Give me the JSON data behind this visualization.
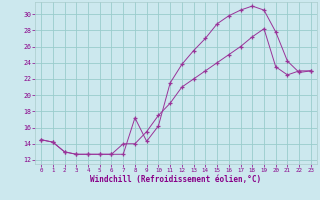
{
  "xlabel": "Windchill (Refroidissement éolien,°C)",
  "bg_color": "#cce8ee",
  "line_color": "#993399",
  "grid_color": "#99cccc",
  "xlim": [
    -0.5,
    23.5
  ],
  "ylim": [
    11.5,
    31.5
  ],
  "yticks": [
    12,
    14,
    16,
    18,
    20,
    22,
    24,
    26,
    28,
    30
  ],
  "xticks": [
    0,
    1,
    2,
    3,
    4,
    5,
    6,
    7,
    8,
    9,
    10,
    11,
    12,
    13,
    14,
    15,
    16,
    17,
    18,
    19,
    20,
    21,
    22,
    23
  ],
  "line1_x": [
    0,
    1,
    2,
    3,
    4,
    5,
    6,
    7,
    8,
    9,
    10,
    11,
    12,
    13,
    14,
    15,
    16,
    17,
    18,
    19,
    20,
    21,
    22,
    23
  ],
  "line1_y": [
    14.5,
    14.2,
    13.0,
    12.7,
    12.7,
    12.7,
    12.7,
    12.7,
    17.2,
    14.3,
    16.2,
    21.5,
    23.8,
    25.5,
    27.0,
    28.8,
    29.8,
    30.5,
    31.0,
    30.5,
    27.8,
    24.2,
    22.8,
    23.0
  ],
  "line2_x": [
    0,
    1,
    2,
    3,
    4,
    5,
    6,
    7,
    8,
    9,
    10,
    11,
    12,
    13,
    14,
    15,
    16,
    17,
    18,
    19,
    20,
    21,
    22,
    23
  ],
  "line2_y": [
    14.5,
    14.2,
    13.0,
    12.7,
    12.7,
    12.7,
    12.7,
    14.0,
    14.0,
    15.5,
    17.5,
    19.0,
    21.0,
    22.0,
    23.0,
    24.0,
    25.0,
    26.0,
    27.2,
    28.2,
    23.5,
    22.5,
    23.0,
    23.0
  ]
}
